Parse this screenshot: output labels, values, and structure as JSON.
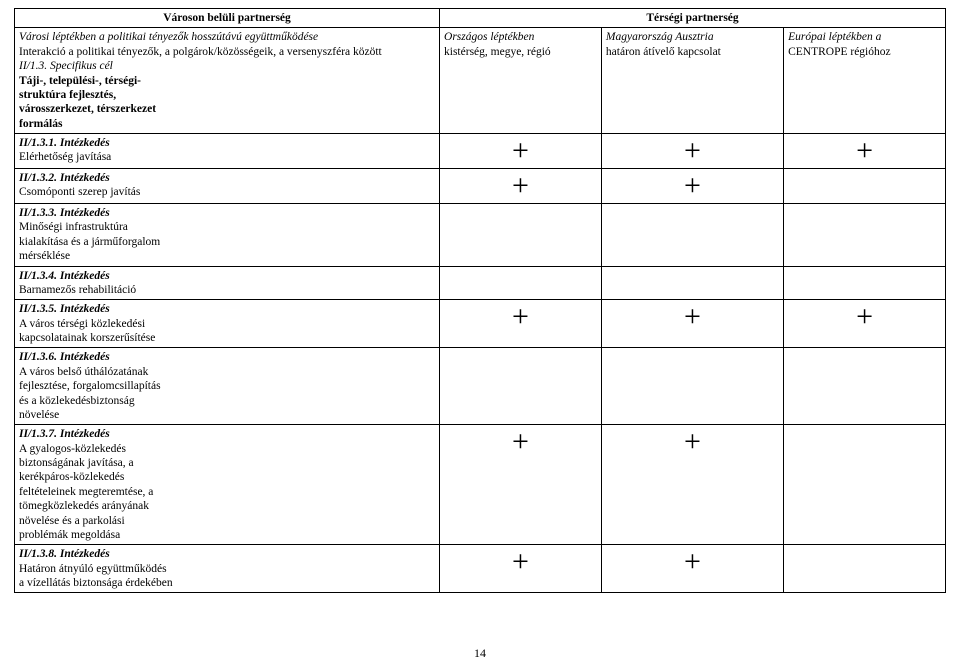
{
  "page_number": "14",
  "headers": {
    "left_title": "Városon belüli partnerség",
    "right_title": "Térségi partnerség",
    "left_sub_line1": "Városi léptékben a politikai tényezők hosszútávú együttműködése",
    "left_sub_line2": "Interakció a politikai tényezők, a polgárok/közösségeik, a versenyszféra között",
    "col1_line1": "Országos léptékben",
    "col1_line2": "kistérség, megye, régió",
    "col2_line1": "Magyarország Ausztria",
    "col2_line2": "határon átívelő kapcsolat",
    "col3_line1": "Európai léptékben a",
    "col3_line2": "CENTROPE régióhoz"
  },
  "rows": [
    {
      "label_head": "II/1.3. Specifikus cél",
      "label_body": "Táji-, települési-, térségi-\nstruktúra fejlesztés,\nvárosszerkezet, térszerkezet\nformálás",
      "head_style": "ital",
      "body_style": "bold",
      "marks": [
        "",
        "",
        ""
      ]
    },
    {
      "label_head": "II/1.3.1. Intézkedés",
      "label_body": "Elérhetőség javítása",
      "head_style": "bolditalic",
      "body_style": "plain",
      "marks": [
        "+",
        "+",
        "+"
      ]
    },
    {
      "label_head": "II/1.3.2. Intézkedés",
      "label_body": "Csomóponti szerep javítás",
      "head_style": "bolditalic",
      "body_style": "plain",
      "marks": [
        "+",
        "+",
        ""
      ]
    },
    {
      "label_head": "II/1.3.3. Intézkedés",
      "label_body": "Minőségi infrastruktúra\nkialakítása és a járműforgalom\nmérséklése",
      "head_style": "bolditalic",
      "body_style": "plain",
      "marks": [
        "",
        "",
        ""
      ]
    },
    {
      "label_head": "II/1.3.4. Intézkedés",
      "label_body": "Barnamezős rehabilitáció",
      "head_style": "bolditalic",
      "body_style": "plain",
      "marks": [
        "",
        "",
        ""
      ]
    },
    {
      "label_head": "II/1.3.5. Intézkedés",
      "label_body": "A város térségi közlekedési\nkapcsolatainak korszerűsítése",
      "head_style": "bolditalic",
      "body_style": "plain",
      "marks": [
        "+",
        "+",
        "+"
      ]
    },
    {
      "label_head": "II/1.3.6. Intézkedés",
      "label_body": "A város belső úthálózatának\nfejlesztése, forgalomcsillapítás\nés a közlekedésbiztonság\nnövelése",
      "head_style": "bolditalic",
      "body_style": "plain",
      "marks": [
        "",
        "",
        ""
      ]
    },
    {
      "label_head": "II/1.3.7. Intézkedés",
      "label_body": "A gyalogos-közlekedés\nbiztonságának javítása, a\nkerékpáros-közlekedés\nfeltételeinek megteremtése, a\ntömegközlekedés arányának\nnövelése és a parkolási\nproblémák megoldása",
      "head_style": "bolditalic",
      "body_style": "plain",
      "marks": [
        "+",
        "+",
        ""
      ]
    },
    {
      "label_head": "II/1.3.8. Intézkedés",
      "label_body": "Határon átnyúló együttműködés\na vízellátás biztonsága érdekében",
      "head_style": "bolditalic",
      "body_style": "plain",
      "marks": [
        "+",
        "+",
        ""
      ]
    }
  ]
}
